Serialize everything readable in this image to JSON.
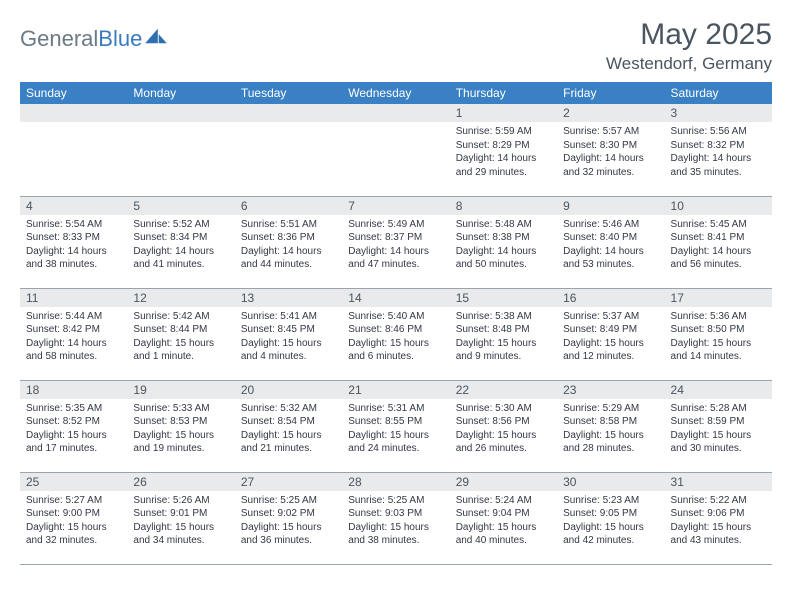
{
  "brand": {
    "part1": "General",
    "part2": "Blue"
  },
  "title": "May 2025",
  "location": "Westendorf, Germany",
  "accent_color": "#3a80c4",
  "header_row_bg": "#e8eaec",
  "weekdays": [
    "Sunday",
    "Monday",
    "Tuesday",
    "Wednesday",
    "Thursday",
    "Friday",
    "Saturday"
  ],
  "weeks": [
    [
      null,
      null,
      null,
      null,
      {
        "n": "1",
        "sr": "Sunrise: 5:59 AM",
        "ss": "Sunset: 8:29 PM",
        "d1": "Daylight: 14 hours",
        "d2": "and 29 minutes."
      },
      {
        "n": "2",
        "sr": "Sunrise: 5:57 AM",
        "ss": "Sunset: 8:30 PM",
        "d1": "Daylight: 14 hours",
        "d2": "and 32 minutes."
      },
      {
        "n": "3",
        "sr": "Sunrise: 5:56 AM",
        "ss": "Sunset: 8:32 PM",
        "d1": "Daylight: 14 hours",
        "d2": "and 35 minutes."
      }
    ],
    [
      {
        "n": "4",
        "sr": "Sunrise: 5:54 AM",
        "ss": "Sunset: 8:33 PM",
        "d1": "Daylight: 14 hours",
        "d2": "and 38 minutes."
      },
      {
        "n": "5",
        "sr": "Sunrise: 5:52 AM",
        "ss": "Sunset: 8:34 PM",
        "d1": "Daylight: 14 hours",
        "d2": "and 41 minutes."
      },
      {
        "n": "6",
        "sr": "Sunrise: 5:51 AM",
        "ss": "Sunset: 8:36 PM",
        "d1": "Daylight: 14 hours",
        "d2": "and 44 minutes."
      },
      {
        "n": "7",
        "sr": "Sunrise: 5:49 AM",
        "ss": "Sunset: 8:37 PM",
        "d1": "Daylight: 14 hours",
        "d2": "and 47 minutes."
      },
      {
        "n": "8",
        "sr": "Sunrise: 5:48 AM",
        "ss": "Sunset: 8:38 PM",
        "d1": "Daylight: 14 hours",
        "d2": "and 50 minutes."
      },
      {
        "n": "9",
        "sr": "Sunrise: 5:46 AM",
        "ss": "Sunset: 8:40 PM",
        "d1": "Daylight: 14 hours",
        "d2": "and 53 minutes."
      },
      {
        "n": "10",
        "sr": "Sunrise: 5:45 AM",
        "ss": "Sunset: 8:41 PM",
        "d1": "Daylight: 14 hours",
        "d2": "and 56 minutes."
      }
    ],
    [
      {
        "n": "11",
        "sr": "Sunrise: 5:44 AM",
        "ss": "Sunset: 8:42 PM",
        "d1": "Daylight: 14 hours",
        "d2": "and 58 minutes."
      },
      {
        "n": "12",
        "sr": "Sunrise: 5:42 AM",
        "ss": "Sunset: 8:44 PM",
        "d1": "Daylight: 15 hours",
        "d2": "and 1 minute."
      },
      {
        "n": "13",
        "sr": "Sunrise: 5:41 AM",
        "ss": "Sunset: 8:45 PM",
        "d1": "Daylight: 15 hours",
        "d2": "and 4 minutes."
      },
      {
        "n": "14",
        "sr": "Sunrise: 5:40 AM",
        "ss": "Sunset: 8:46 PM",
        "d1": "Daylight: 15 hours",
        "d2": "and 6 minutes."
      },
      {
        "n": "15",
        "sr": "Sunrise: 5:38 AM",
        "ss": "Sunset: 8:48 PM",
        "d1": "Daylight: 15 hours",
        "d2": "and 9 minutes."
      },
      {
        "n": "16",
        "sr": "Sunrise: 5:37 AM",
        "ss": "Sunset: 8:49 PM",
        "d1": "Daylight: 15 hours",
        "d2": "and 12 minutes."
      },
      {
        "n": "17",
        "sr": "Sunrise: 5:36 AM",
        "ss": "Sunset: 8:50 PM",
        "d1": "Daylight: 15 hours",
        "d2": "and 14 minutes."
      }
    ],
    [
      {
        "n": "18",
        "sr": "Sunrise: 5:35 AM",
        "ss": "Sunset: 8:52 PM",
        "d1": "Daylight: 15 hours",
        "d2": "and 17 minutes."
      },
      {
        "n": "19",
        "sr": "Sunrise: 5:33 AM",
        "ss": "Sunset: 8:53 PM",
        "d1": "Daylight: 15 hours",
        "d2": "and 19 minutes."
      },
      {
        "n": "20",
        "sr": "Sunrise: 5:32 AM",
        "ss": "Sunset: 8:54 PM",
        "d1": "Daylight: 15 hours",
        "d2": "and 21 minutes."
      },
      {
        "n": "21",
        "sr": "Sunrise: 5:31 AM",
        "ss": "Sunset: 8:55 PM",
        "d1": "Daylight: 15 hours",
        "d2": "and 24 minutes."
      },
      {
        "n": "22",
        "sr": "Sunrise: 5:30 AM",
        "ss": "Sunset: 8:56 PM",
        "d1": "Daylight: 15 hours",
        "d2": "and 26 minutes."
      },
      {
        "n": "23",
        "sr": "Sunrise: 5:29 AM",
        "ss": "Sunset: 8:58 PM",
        "d1": "Daylight: 15 hours",
        "d2": "and 28 minutes."
      },
      {
        "n": "24",
        "sr": "Sunrise: 5:28 AM",
        "ss": "Sunset: 8:59 PM",
        "d1": "Daylight: 15 hours",
        "d2": "and 30 minutes."
      }
    ],
    [
      {
        "n": "25",
        "sr": "Sunrise: 5:27 AM",
        "ss": "Sunset: 9:00 PM",
        "d1": "Daylight: 15 hours",
        "d2": "and 32 minutes."
      },
      {
        "n": "26",
        "sr": "Sunrise: 5:26 AM",
        "ss": "Sunset: 9:01 PM",
        "d1": "Daylight: 15 hours",
        "d2": "and 34 minutes."
      },
      {
        "n": "27",
        "sr": "Sunrise: 5:25 AM",
        "ss": "Sunset: 9:02 PM",
        "d1": "Daylight: 15 hours",
        "d2": "and 36 minutes."
      },
      {
        "n": "28",
        "sr": "Sunrise: 5:25 AM",
        "ss": "Sunset: 9:03 PM",
        "d1": "Daylight: 15 hours",
        "d2": "and 38 minutes."
      },
      {
        "n": "29",
        "sr": "Sunrise: 5:24 AM",
        "ss": "Sunset: 9:04 PM",
        "d1": "Daylight: 15 hours",
        "d2": "and 40 minutes."
      },
      {
        "n": "30",
        "sr": "Sunrise: 5:23 AM",
        "ss": "Sunset: 9:05 PM",
        "d1": "Daylight: 15 hours",
        "d2": "and 42 minutes."
      },
      {
        "n": "31",
        "sr": "Sunrise: 5:22 AM",
        "ss": "Sunset: 9:06 PM",
        "d1": "Daylight: 15 hours",
        "d2": "and 43 minutes."
      }
    ]
  ]
}
